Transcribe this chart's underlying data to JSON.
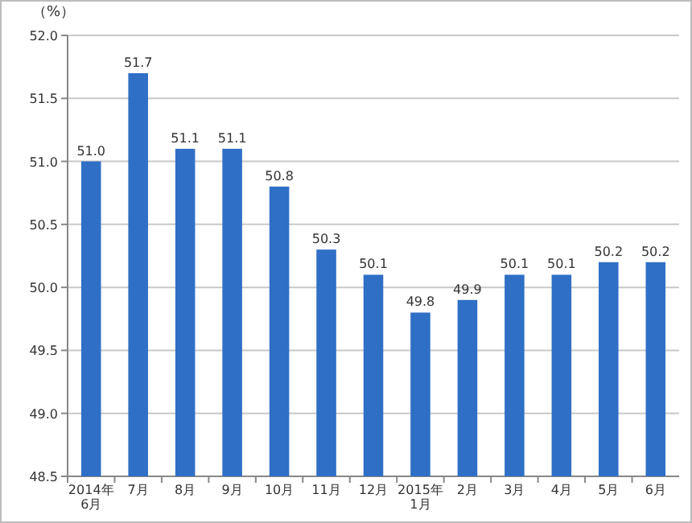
{
  "chart_data": {
    "type": "bar",
    "ylabel": "（%）",
    "categories": [
      "2014年\n6月",
      "7月",
      "8月",
      "9月",
      "10月",
      "11月",
      "12月",
      "2015年\n1月",
      "2月",
      "3月",
      "4月",
      "5月",
      "6月"
    ],
    "values": [
      51.0,
      51.7,
      51.1,
      51.1,
      50.8,
      50.3,
      50.1,
      49.8,
      49.9,
      50.1,
      50.1,
      50.2,
      50.2
    ],
    "color": "#2f6fc6",
    "ylim": [
      48.5,
      52.0
    ],
    "yticks": [
      {
        "value": 48.5,
        "label": "48.5"
      },
      {
        "value": 49.0,
        "label": "49.0"
      },
      {
        "value": 49.5,
        "label": "49.5"
      },
      {
        "value": 50.0,
        "label": "50.0"
      },
      {
        "value": 50.5,
        "label": "50.5"
      },
      {
        "value": 51.0,
        "label": "51.0"
      },
      {
        "value": 51.5,
        "label": "51.5"
      },
      {
        "value": 52.0,
        "label": "52.0"
      }
    ],
    "value_labels": [
      "51.0",
      "51.7",
      "51.1",
      "51.1",
      "50.8",
      "50.3",
      "50.1",
      "49.8",
      "49.9",
      "50.1",
      "50.1",
      "50.2",
      "50.2"
    ],
    "grid": "y"
  }
}
